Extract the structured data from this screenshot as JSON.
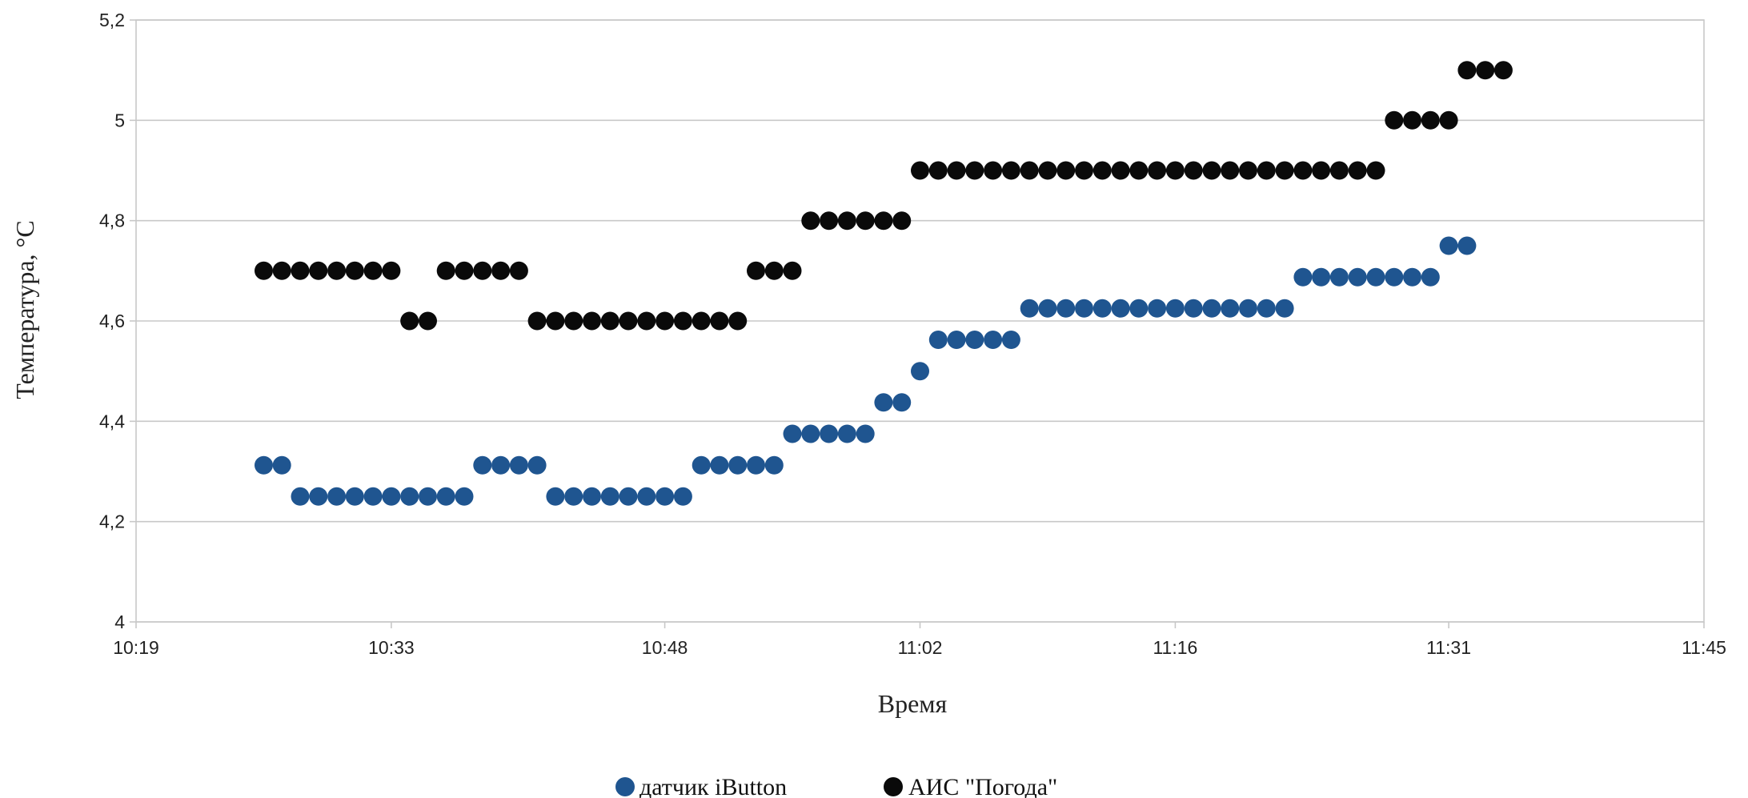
{
  "chart_data": {
    "type": "scatter",
    "title": "",
    "xlabel": "Время",
    "ylabel": "Температура, °С",
    "xlim": [
      "10:19",
      "11:45"
    ],
    "ylim": [
      4,
      5.2
    ],
    "x_ticks": [
      "10:19",
      "10:33",
      "10:48",
      "11:02",
      "11:16",
      "11:31",
      "11:45"
    ],
    "y_ticks": [
      "4",
      "4,2",
      "4,4",
      "4,6",
      "4,8",
      "5",
      "5,2"
    ],
    "grid": true,
    "legend_position": "bottom",
    "series": [
      {
        "name": "датчик iButton",
        "color": "#1f5590",
        "points": [
          [
            "10:26",
            4.3125
          ],
          [
            "10:27",
            4.3125
          ],
          [
            "10:28",
            4.25
          ],
          [
            "10:29",
            4.25
          ],
          [
            "10:30",
            4.25
          ],
          [
            "10:31",
            4.25
          ],
          [
            "10:32",
            4.25
          ],
          [
            "10:33",
            4.25
          ],
          [
            "10:34",
            4.25
          ],
          [
            "10:35",
            4.25
          ],
          [
            "10:36",
            4.25
          ],
          [
            "10:37",
            4.25
          ],
          [
            "10:38",
            4.3125
          ],
          [
            "10:39",
            4.3125
          ],
          [
            "10:40",
            4.3125
          ],
          [
            "10:41",
            4.3125
          ],
          [
            "10:42",
            4.25
          ],
          [
            "10:43",
            4.25
          ],
          [
            "10:44",
            4.25
          ],
          [
            "10:45",
            4.25
          ],
          [
            "10:46",
            4.25
          ],
          [
            "10:47",
            4.25
          ],
          [
            "10:48",
            4.25
          ],
          [
            "10:49",
            4.25
          ],
          [
            "10:50",
            4.3125
          ],
          [
            "10:51",
            4.3125
          ],
          [
            "10:52",
            4.3125
          ],
          [
            "10:53",
            4.3125
          ],
          [
            "10:54",
            4.3125
          ],
          [
            "10:55",
            4.375
          ],
          [
            "10:56",
            4.375
          ],
          [
            "10:57",
            4.375
          ],
          [
            "10:58",
            4.375
          ],
          [
            "10:59",
            4.375
          ],
          [
            "11:00",
            4.4375
          ],
          [
            "11:01",
            4.4375
          ],
          [
            "11:02",
            4.5
          ],
          [
            "11:03",
            4.5625
          ],
          [
            "11:04",
            4.5625
          ],
          [
            "11:05",
            4.5625
          ],
          [
            "11:06",
            4.5625
          ],
          [
            "11:07",
            4.5625
          ],
          [
            "11:08",
            4.625
          ],
          [
            "11:09",
            4.625
          ],
          [
            "11:10",
            4.625
          ],
          [
            "11:11",
            4.625
          ],
          [
            "11:12",
            4.625
          ],
          [
            "11:13",
            4.625
          ],
          [
            "11:14",
            4.625
          ],
          [
            "11:15",
            4.625
          ],
          [
            "11:16",
            4.625
          ],
          [
            "11:17",
            4.625
          ],
          [
            "11:18",
            4.625
          ],
          [
            "11:19",
            4.625
          ],
          [
            "11:20",
            4.625
          ],
          [
            "11:21",
            4.625
          ],
          [
            "11:22",
            4.625
          ],
          [
            "11:23",
            4.6875
          ],
          [
            "11:24",
            4.6875
          ],
          [
            "11:25",
            4.6875
          ],
          [
            "11:26",
            4.6875
          ],
          [
            "11:27",
            4.6875
          ],
          [
            "11:28",
            4.6875
          ],
          [
            "11:29",
            4.6875
          ],
          [
            "11:30",
            4.6875
          ],
          [
            "11:31",
            4.75
          ],
          [
            "11:32",
            4.75
          ]
        ]
      },
      {
        "name": "АИС \"Погода\"",
        "color": "#0a0a0a",
        "points": [
          [
            "10:26",
            4.7
          ],
          [
            "10:27",
            4.7
          ],
          [
            "10:28",
            4.7
          ],
          [
            "10:29",
            4.7
          ],
          [
            "10:30",
            4.7
          ],
          [
            "10:31",
            4.7
          ],
          [
            "10:32",
            4.7
          ],
          [
            "10:33",
            4.7
          ],
          [
            "10:34",
            4.6
          ],
          [
            "10:35",
            4.6
          ],
          [
            "10:36",
            4.7
          ],
          [
            "10:37",
            4.7
          ],
          [
            "10:38",
            4.7
          ],
          [
            "10:39",
            4.7
          ],
          [
            "10:40",
            4.7
          ],
          [
            "10:41",
            4.6
          ],
          [
            "10:42",
            4.6
          ],
          [
            "10:43",
            4.6
          ],
          [
            "10:44",
            4.6
          ],
          [
            "10:45",
            4.6
          ],
          [
            "10:46",
            4.6
          ],
          [
            "10:47",
            4.6
          ],
          [
            "10:48",
            4.6
          ],
          [
            "10:49",
            4.6
          ],
          [
            "10:50",
            4.6
          ],
          [
            "10:51",
            4.6
          ],
          [
            "10:52",
            4.6
          ],
          [
            "10:53",
            4.7
          ],
          [
            "10:54",
            4.7
          ],
          [
            "10:55",
            4.7
          ],
          [
            "10:56",
            4.8
          ],
          [
            "10:57",
            4.8
          ],
          [
            "10:58",
            4.8
          ],
          [
            "10:59",
            4.8
          ],
          [
            "11:00",
            4.8
          ],
          [
            "11:01",
            4.8
          ],
          [
            "11:02",
            4.9
          ],
          [
            "11:03",
            4.9
          ],
          [
            "11:04",
            4.9
          ],
          [
            "11:05",
            4.9
          ],
          [
            "11:06",
            4.9
          ],
          [
            "11:07",
            4.9
          ],
          [
            "11:08",
            4.9
          ],
          [
            "11:09",
            4.9
          ],
          [
            "11:10",
            4.9
          ],
          [
            "11:11",
            4.9
          ],
          [
            "11:12",
            4.9
          ],
          [
            "11:13",
            4.9
          ],
          [
            "11:14",
            4.9
          ],
          [
            "11:15",
            4.9
          ],
          [
            "11:16",
            4.9
          ],
          [
            "11:17",
            4.9
          ],
          [
            "11:18",
            4.9
          ],
          [
            "11:19",
            4.9
          ],
          [
            "11:20",
            4.9
          ],
          [
            "11:21",
            4.9
          ],
          [
            "11:22",
            4.9
          ],
          [
            "11:23",
            4.9
          ],
          [
            "11:24",
            4.9
          ],
          [
            "11:25",
            4.9
          ],
          [
            "11:26",
            4.9
          ],
          [
            "11:27",
            4.9
          ],
          [
            "11:28",
            5.0
          ],
          [
            "11:29",
            5.0
          ],
          [
            "11:30",
            5.0
          ],
          [
            "11:31",
            5.0
          ],
          [
            "11:32",
            5.1
          ],
          [
            "11:33",
            5.1
          ],
          [
            "11:34",
            5.1
          ]
        ]
      }
    ]
  }
}
